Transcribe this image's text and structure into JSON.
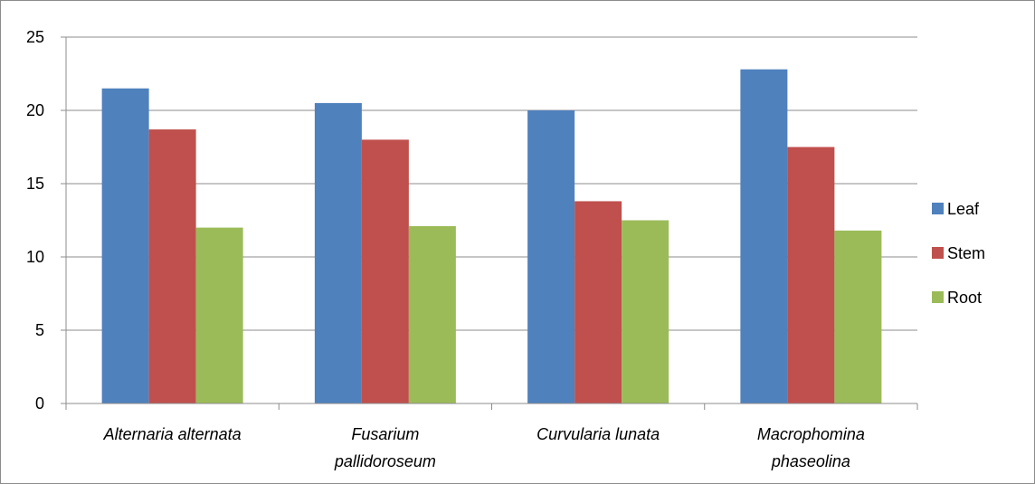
{
  "chart_data": {
    "type": "bar",
    "title": "",
    "xlabel": "",
    "ylabel": "",
    "categories": [
      [
        "Alternaria alternata"
      ],
      [
        "Fusarium",
        "pallidoroseum"
      ],
      [
        "Curvularia lunata"
      ],
      [
        "Macrophomina",
        "phaseolina"
      ]
    ],
    "series": [
      {
        "name": "Leaf",
        "color": "#4F81BD",
        "values": [
          21.5,
          20.5,
          20.0,
          22.8
        ]
      },
      {
        "name": "Stem",
        "color": "#C0504D",
        "values": [
          18.7,
          18.0,
          13.8,
          17.5
        ]
      },
      {
        "name": "Root",
        "color": "#9BBB59",
        "values": [
          12.0,
          12.1,
          12.5,
          11.8
        ]
      }
    ],
    "ylim": [
      0,
      25
    ],
    "yticks": [
      0,
      5,
      10,
      15,
      20,
      25
    ],
    "grid": true,
    "legend_position": "right"
  }
}
